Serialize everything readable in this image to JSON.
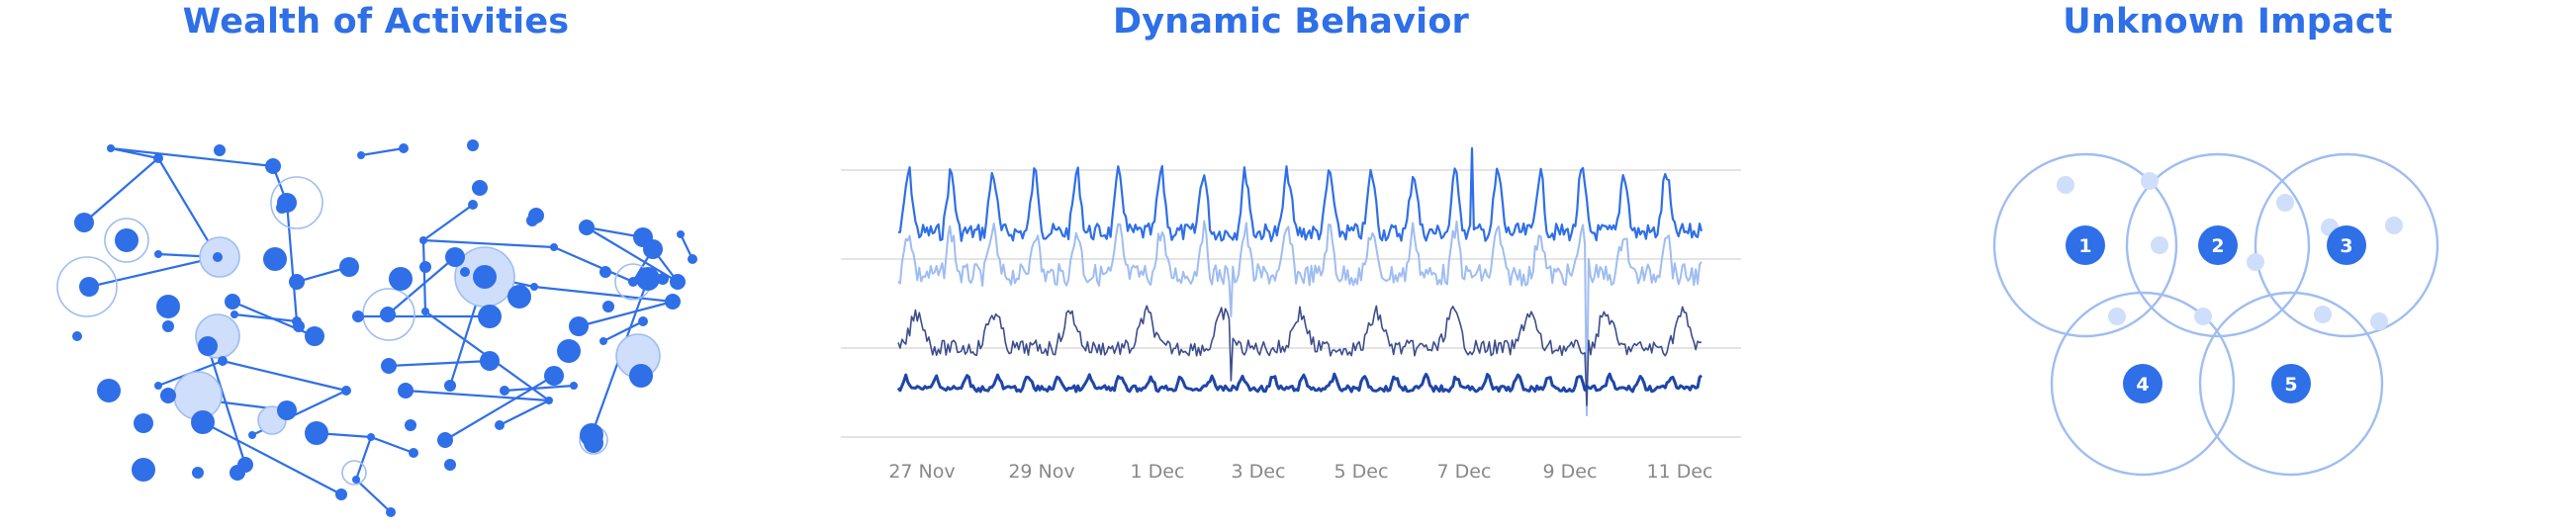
{
  "panels": {
    "activities": {
      "title": "Wealth of Activities"
    },
    "behavior": {
      "title": "Dynamic Behavior"
    },
    "impact": {
      "title": "Unknown Impact"
    }
  },
  "colors": {
    "primary": "#2f6fe7",
    "light": "#9fbdf1",
    "pale": "#cfdefa",
    "dark": "#1f46a8",
    "slate": "#3d4d8c",
    "grid": "#dcdcdc",
    "tick": "#888888"
  },
  "chart_data": {
    "type": "line",
    "x_ticks": [
      "27 Nov",
      "29 Nov",
      "1 Dec",
      "3 Dec",
      "5 Dec",
      "7 Dec",
      "9 Dec",
      "11 Dec"
    ],
    "grid": true,
    "legend": "none",
    "series_count": 4
  },
  "venn": {
    "labels": [
      "1",
      "2",
      "3",
      "4",
      "5"
    ]
  }
}
